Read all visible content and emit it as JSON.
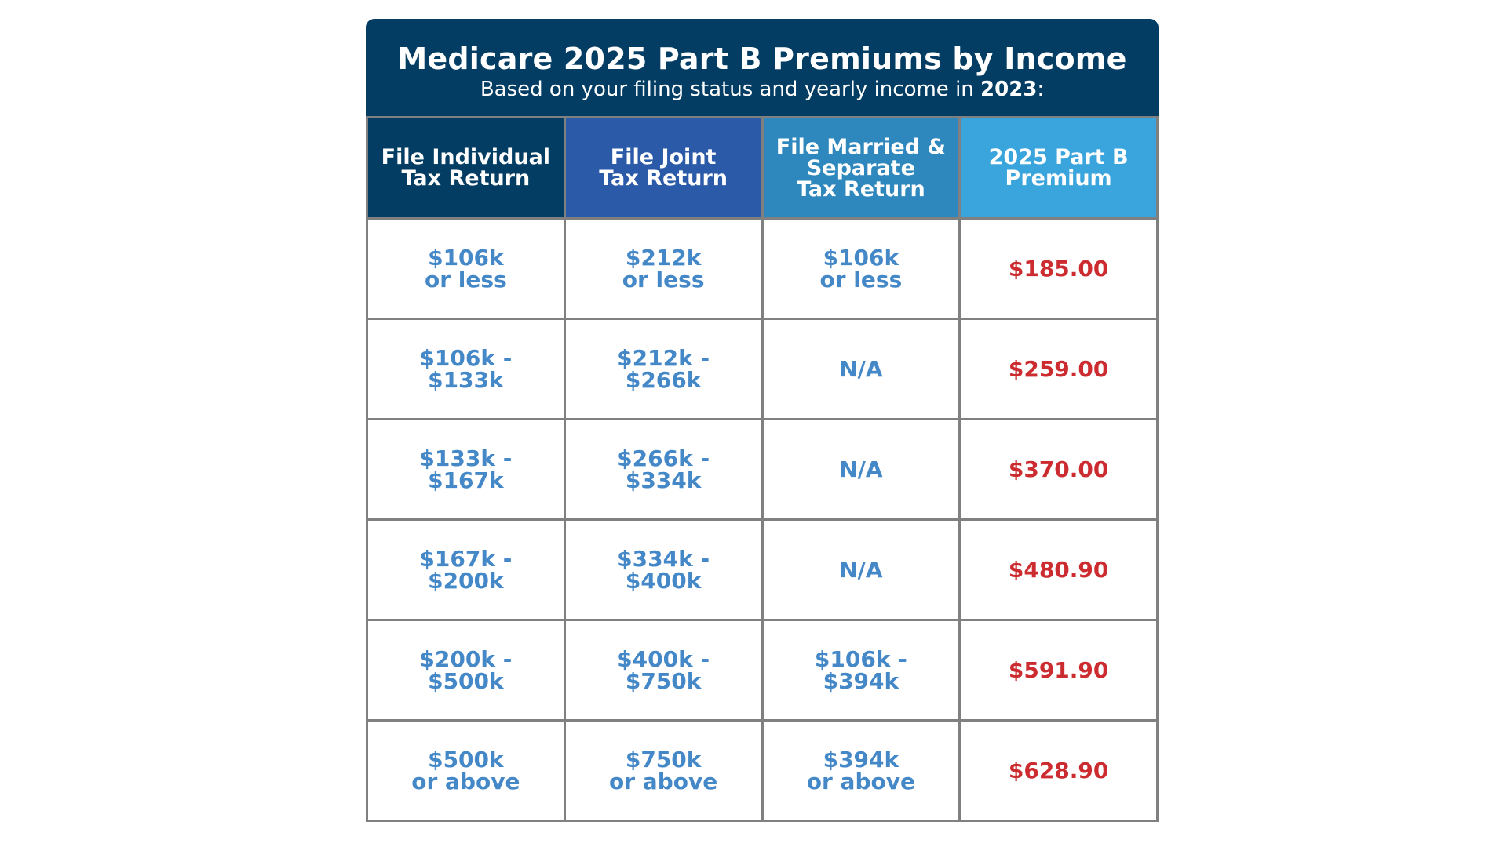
{
  "header": {
    "title": "Medicare 2025 Part B Premiums by Income",
    "subtitle_prefix": "Based on your filing status and yearly income in ",
    "subtitle_year": "2023",
    "subtitle_suffix": ":"
  },
  "table": {
    "columns": [
      "File Individual\nTax Return",
      "File Joint\nTax Return",
      "File Married &\nSeparate\nTax Return",
      "2025 Part B\nPremium"
    ],
    "rows": [
      {
        "individual": "$106k\nor less",
        "joint": "$212k\nor less",
        "separate": "$106k\nor less",
        "premium": "$185.00"
      },
      {
        "individual": "$106k -\n$133k",
        "joint": "$212k -\n$266k",
        "separate": "N/A",
        "premium": "$259.00"
      },
      {
        "individual": "$133k -\n$167k",
        "joint": "$266k -\n$334k",
        "separate": "N/A",
        "premium": "$370.00"
      },
      {
        "individual": "$167k -\n$200k",
        "joint": "$334k -\n$400k",
        "separate": "N/A",
        "premium": "$480.90"
      },
      {
        "individual": "$200k -\n$500k",
        "joint": "$400k -\n$750k",
        "separate": "$106k -\n$394k",
        "premium": "$591.90"
      },
      {
        "individual": "$500k\nor above",
        "joint": "$750k\nor above",
        "separate": "$394k\nor above",
        "premium": "$628.90"
      }
    ]
  },
  "colors": {
    "title_bar": "#043d63",
    "header_individual": "#043d63",
    "header_joint": "#2a5aa8",
    "header_separate": "#2e88bd",
    "header_premium": "#3aa5dd",
    "income_text": "#4488c8",
    "premium_text": "#cc2b2f",
    "grid": "#808080"
  }
}
